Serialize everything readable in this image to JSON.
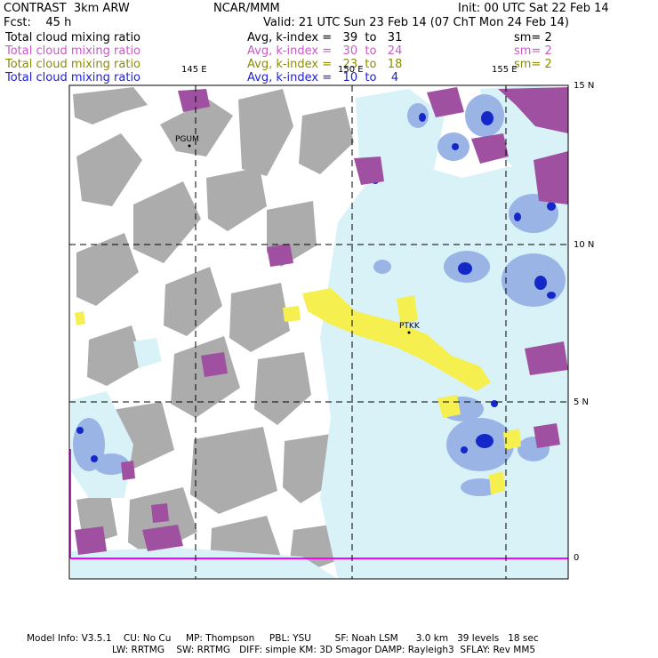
{
  "header": {
    "top_left": "CONTRAST  3km ARW",
    "top_center": "NCAR/MMM",
    "top_right": "Init: 00 UTC Sat 22 Feb 14",
    "fcst": "Fcst:    45 h",
    "valid": "Valid: 21 UTC Sun 23 Feb 14 (07 ChT Mon 24 Feb 14)"
  },
  "fields": [
    {
      "name": "Total cloud mixing ratio",
      "avg": "Avg, k-index =   39  to   31",
      "sm": "sm= 2",
      "color": "#000000"
    },
    {
      "name": "Total cloud mixing ratio",
      "avg": "Avg, k-index =   30  to   24",
      "sm": "sm= 2",
      "color": "#c85ac8"
    },
    {
      "name": "Total cloud mixing ratio",
      "avg": "Avg, k-index =   23  to   18",
      "sm": "sm= 2",
      "color": "#8c8c00"
    },
    {
      "name": "Total cloud mixing ratio",
      "avg": "Avg, k-index =   10  to    4",
      "sm": "",
      "color": "#1e1ed2"
    }
  ],
  "map": {
    "lon_labels": [
      "145 E",
      "150 E",
      "155 E"
    ],
    "lat_labels": [
      "15 N",
      "10 N",
      "5 N",
      "0"
    ],
    "stations": [
      "PGUM",
      "PTKK"
    ],
    "colors": {
      "gray_cloud": "#a8a8a8",
      "purple_cloud": "#a050a0",
      "yellow_cloud": "#f5f050",
      "light_blue_cloud": "#d8f2f8",
      "mid_blue_cloud": "#9ab4e6",
      "dark_blue_cloud": "#1428c8",
      "magenta_line": "#ff00ff"
    }
  },
  "footer": {
    "line1": "Model Info: V3.5.1    CU: No Cu     MP: Thompson     PBL: YSU        SF: Noah LSM      3.0 km   39 levels   18 sec",
    "line2": "LW: RRTMG    SW: RRTMG   DIFF: simple KM: 3D Smagor DAMP: Rayleigh3  SFLAY: Rev MM5"
  }
}
